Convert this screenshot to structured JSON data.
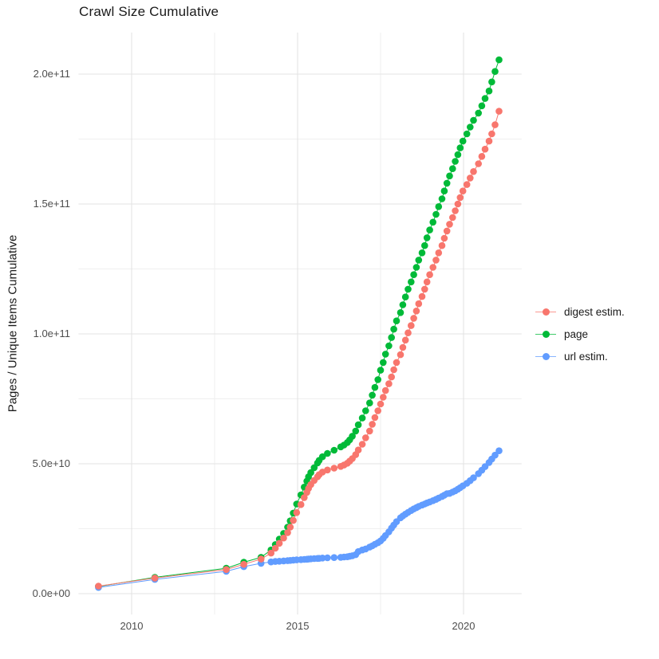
{
  "page": {
    "background": "#FFFFFF"
  },
  "chart_data": {
    "type": "scatter",
    "title": "Crawl Size Cumulative",
    "ylabel": "Pages / Unique Items Cumulative",
    "xlabel": "",
    "values_unit": "1e9",
    "grid": true,
    "legend_position": "right",
    "xlim": [
      2008.4,
      2021.75
    ],
    "ylim": [
      -8,
      216
    ],
    "xticks": [
      {
        "value": 2010,
        "label": "2010"
      },
      {
        "value": 2015,
        "label": "2015"
      },
      {
        "value": 2020,
        "label": "2020"
      }
    ],
    "yticks": [
      {
        "value": 0,
        "label": "0.0e+00"
      },
      {
        "value": 50,
        "label": "5.0e+10"
      },
      {
        "value": 100,
        "label": "1.0e+11"
      },
      {
        "value": 150,
        "label": "1.5e+11"
      },
      {
        "value": 200,
        "label": "2.0e+11"
      }
    ],
    "minor_yticks": [
      25,
      75,
      125,
      175
    ],
    "minor_xticks": [
      2012.5,
      2017.5
    ],
    "x_years": [
      2009.0,
      2010.7,
      2012.85,
      2013.38,
      2013.9,
      2014.2,
      2014.33,
      2014.45,
      2014.58,
      2014.7,
      2014.78,
      2014.87,
      2014.97,
      2015.1,
      2015.2,
      2015.28,
      2015.33,
      2015.4,
      2015.5,
      2015.6,
      2015.65,
      2015.75,
      2015.9,
      2016.1,
      2016.3,
      2016.4,
      2016.5,
      2016.57,
      2016.65,
      2016.75,
      2016.83,
      2016.95,
      2017.05,
      2017.17,
      2017.25,
      2017.33,
      2017.42,
      2017.5,
      2017.58,
      2017.65,
      2017.75,
      2017.83,
      2017.9,
      2017.98,
      2018.1,
      2018.17,
      2018.25,
      2018.33,
      2018.42,
      2018.5,
      2018.58,
      2018.65,
      2018.75,
      2018.83,
      2018.9,
      2018.98,
      2019.08,
      2019.17,
      2019.25,
      2019.35,
      2019.42,
      2019.5,
      2019.58,
      2019.67,
      2019.75,
      2019.83,
      2019.9,
      2019.98,
      2020.1,
      2020.2,
      2020.3,
      2020.45,
      2020.55,
      2020.65,
      2020.77,
      2020.85,
      2020.95,
      2021.07
    ],
    "series": [
      {
        "name": "digest estim.",
        "color": "#F8766D",
        "values": [
          2.9,
          6.0,
          9.3,
          11.3,
          13.3,
          15.6,
          17.5,
          19.4,
          21.4,
          23.5,
          25.6,
          28.2,
          31.2,
          34.3,
          37.0,
          39.0,
          40.5,
          42.0,
          43.6,
          45.0,
          45.8,
          46.8,
          47.6,
          48.3,
          49.0,
          49.5,
          50.2,
          51.0,
          52.0,
          53.5,
          55.3,
          57.5,
          60.0,
          62.6,
          65.2,
          67.8,
          70.4,
          73.0,
          75.6,
          78.2,
          80.8,
          83.4,
          86.2,
          89.0,
          92.0,
          94.8,
          97.6,
          100.4,
          103.2,
          106.0,
          108.8,
          111.6,
          114.4,
          117.2,
          120.0,
          122.8,
          125.6,
          128.4,
          131.2,
          134.0,
          136.8,
          139.6,
          142.2,
          144.8,
          147.4,
          150.0,
          152.5,
          155.0,
          157.5,
          160.0,
          162.5,
          165.5,
          168.3,
          171.1,
          174.2,
          177.0,
          180.5,
          185.7
        ]
      },
      {
        "name": "page",
        "color": "#00BA38",
        "values": [
          2.8,
          6.3,
          9.8,
          12.1,
          14.0,
          16.8,
          18.9,
          21.0,
          23.2,
          25.6,
          28.0,
          31.0,
          34.5,
          38.0,
          41.0,
          43.3,
          45.0,
          46.6,
          48.5,
          50.3,
          51.3,
          52.7,
          54.0,
          55.2,
          56.5,
          57.2,
          58.2,
          59.2,
          60.6,
          62.6,
          65.0,
          67.6,
          70.4,
          73.4,
          76.4,
          79.4,
          82.4,
          86.0,
          89.0,
          92.2,
          95.4,
          98.6,
          101.8,
          105.0,
          108.2,
          111.2,
          114.2,
          117.2,
          120.0,
          122.8,
          125.6,
          128.4,
          131.2,
          134.0,
          137.0,
          140.0,
          143.0,
          146.0,
          149.0,
          152.0,
          155.0,
          158.0,
          160.8,
          163.6,
          166.4,
          169.0,
          171.6,
          174.2,
          177.0,
          179.6,
          182.2,
          185.0,
          187.8,
          190.6,
          193.5,
          197.0,
          201.0,
          205.5
        ]
      },
      {
        "name": "url estim.",
        "color": "#619CFF",
        "values": [
          2.4,
          5.5,
          8.6,
          10.4,
          11.7,
          12.2,
          12.4,
          12.5,
          12.6,
          12.7,
          12.8,
          12.9,
          13.0,
          13.1,
          13.2,
          13.25,
          13.3,
          13.4,
          13.5,
          13.55,
          13.6,
          13.7,
          13.8,
          13.9,
          14.0,
          14.1,
          14.2,
          14.4,
          14.6,
          15.0,
          16.2,
          16.8,
          17.2,
          17.9,
          18.4,
          19.0,
          19.6,
          20.3,
          21.3,
          22.4,
          23.8,
          25.2,
          26.4,
          27.7,
          29.2,
          29.9,
          30.6,
          31.3,
          32.0,
          32.6,
          33.1,
          33.6,
          34.1,
          34.5,
          34.9,
          35.3,
          35.8,
          36.3,
          36.8,
          37.4,
          37.9,
          38.5,
          38.6,
          39.1,
          39.6,
          40.2,
          40.8,
          41.5,
          42.5,
          43.5,
          44.6,
          46.2,
          47.5,
          48.9,
          50.5,
          51.8,
          53.3,
          55.0
        ]
      }
    ]
  }
}
